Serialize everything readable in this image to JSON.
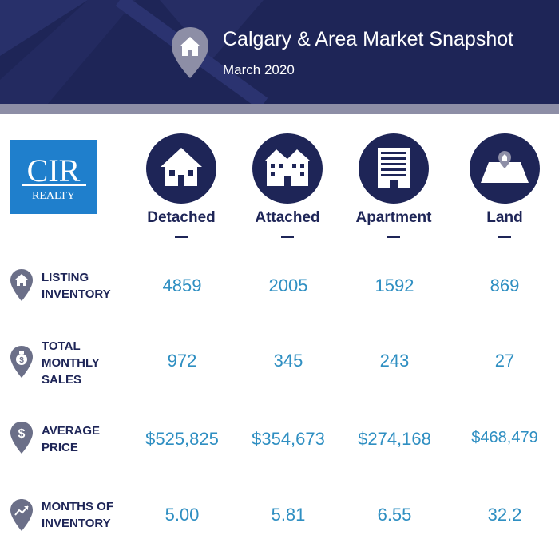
{
  "header": {
    "title": "Calgary & Area Market Snapshot",
    "subtitle": "March 2020"
  },
  "colors": {
    "navy": "#1e2557",
    "accent_strip": "#8d8ea6",
    "value_blue": "#2f8fc2",
    "logo_blue": "#1f7fcc",
    "pin_gray": "#6b6f88"
  },
  "logo": {
    "main": "CIR",
    "sub": "REALTY"
  },
  "columns": [
    {
      "label": "Detached",
      "icon": "house-icon"
    },
    {
      "label": "Attached",
      "icon": "townhouse-icon"
    },
    {
      "label": "Apartment",
      "icon": "apartment-building-icon"
    },
    {
      "label": "Land",
      "icon": "land-plot-icon"
    }
  ],
  "rows": [
    {
      "label_lines": [
        "Listing",
        "Inventory"
      ],
      "icon": "house-icon",
      "values": [
        "4859",
        "2005",
        "1592",
        "869"
      ]
    },
    {
      "label_lines": [
        "Total",
        "Monthly",
        "Sales"
      ],
      "icon": "money-bag-icon",
      "values": [
        "972",
        "345",
        "243",
        "27"
      ]
    },
    {
      "label_lines": [
        "Average",
        "Price"
      ],
      "icon": "dollar-icon",
      "values": [
        "$525,825",
        "$354,673",
        "$274,168",
        "$468,479"
      ]
    },
    {
      "label_lines": [
        "Months of",
        "Inventory"
      ],
      "icon": "trend-up-icon",
      "values": [
        "5.00",
        "5.81",
        "6.55",
        "32.2"
      ]
    }
  ]
}
